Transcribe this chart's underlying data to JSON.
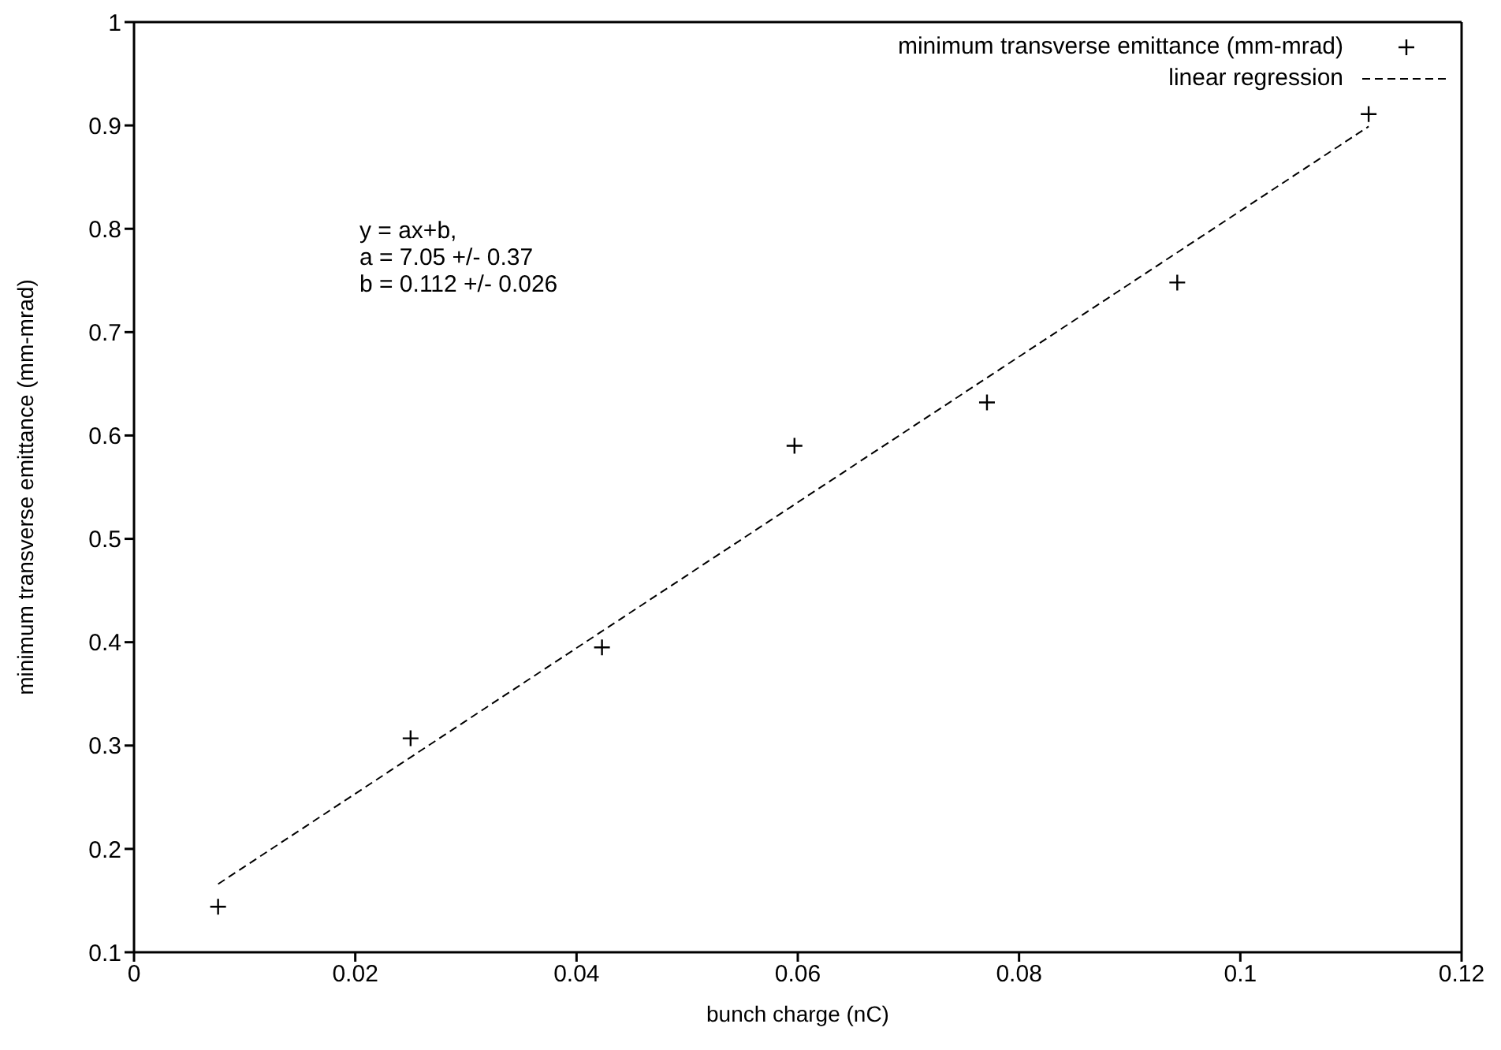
{
  "chart_data": {
    "type": "scatter",
    "xlabel": "bunch charge (nC)",
    "ylabel": "minimum transverse emittance (mm-mrad)",
    "xlim": [
      0,
      0.12
    ],
    "xticks": [
      0,
      0.02,
      0.04,
      0.06,
      0.08,
      0.1,
      0.12
    ],
    "ylim": [
      0.1,
      1
    ],
    "yticks": [
      0.1,
      0.2,
      0.3,
      0.4,
      0.5,
      0.6,
      0.7,
      0.8,
      0.9,
      1
    ],
    "series": [
      {
        "name": "minimum transverse emittance (mm-mrad)",
        "marker": "cross",
        "color": "#000000",
        "x": [
          0.0076,
          0.025,
          0.0423,
          0.0597,
          0.0771,
          0.0943,
          0.1116
        ],
        "values": [
          0.144,
          0.307,
          0.395,
          0.59,
          0.632,
          0.748,
          0.911
        ]
      },
      {
        "name": "linear regression",
        "type": "line",
        "line_style": "dashed",
        "color": "#000000",
        "x": [
          0.0076,
          0.1116
        ],
        "values": [
          0.166,
          0.899
        ]
      }
    ],
    "annotations": [
      "y = ax+b,",
      "a = 7.05 +/- 0.37",
      "b = 0.112 +/- 0.026"
    ],
    "legend": "top right"
  }
}
